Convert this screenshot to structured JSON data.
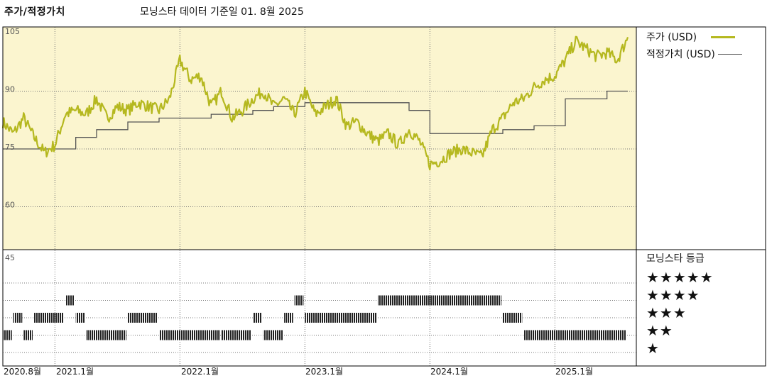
{
  "header": {
    "title": "주가/적정가치",
    "source": "모닝스타 데이터 기준일 01. 8월 2025"
  },
  "legend": {
    "price_label": "주가 (USD)",
    "fair_value_label": "적정가치 (USD)"
  },
  "rating_panel": {
    "title": "모닝스타 등급",
    "stars": [
      "★★★★★",
      "★★★★",
      "★★★",
      "★★",
      "★"
    ]
  },
  "colors": {
    "price": "#b5b81f",
    "fair_value": "#555555",
    "plot_bg": "#fbf5cf",
    "rating_bar": "#222222"
  },
  "chart_data": {
    "type": "line",
    "title": "주가/적정가치",
    "x_labels": [
      "2020.8월",
      "2021.1월",
      "2022.1월",
      "2023.1월",
      "2024.1월",
      "2025.1월"
    ],
    "x_label_dates": [
      "2020-08",
      "2021-01",
      "2022-01",
      "2023-01",
      "2024-01",
      "2025-01"
    ],
    "x_range": [
      "2020-08",
      "2025-08"
    ],
    "y_ticks": [
      105,
      90,
      75,
      60,
      45
    ],
    "ylim": [
      45,
      105
    ],
    "grid": true,
    "series": [
      {
        "name": "주가 (USD)",
        "x": [
          "2020-08",
          "2020-09",
          "2020-10",
          "2020-11",
          "2020-12",
          "2021-01",
          "2021-02",
          "2021-03",
          "2021-04",
          "2021-05",
          "2021-06",
          "2021-07",
          "2021-08",
          "2021-09",
          "2021-10",
          "2021-11",
          "2021-12",
          "2022-01",
          "2022-02",
          "2022-03",
          "2022-04",
          "2022-05",
          "2022-06",
          "2022-07",
          "2022-08",
          "2022-09",
          "2022-10",
          "2022-11",
          "2022-12",
          "2023-01",
          "2023-02",
          "2023-03",
          "2023-04",
          "2023-05",
          "2023-06",
          "2023-07",
          "2023-08",
          "2023-09",
          "2023-10",
          "2023-11",
          "2023-12",
          "2024-01",
          "2024-02",
          "2024-03",
          "2024-04",
          "2024-05",
          "2024-06",
          "2024-07",
          "2024-08",
          "2024-09",
          "2024-10",
          "2024-11",
          "2024-12",
          "2025-01",
          "2025-02",
          "2025-03",
          "2025-04",
          "2025-05",
          "2025-06",
          "2025-07",
          "2025-08"
        ],
        "values": [
          82,
          79,
          83,
          78,
          74,
          76,
          84,
          85,
          84,
          88,
          83,
          86,
          85,
          87,
          86,
          85,
          88,
          98,
          93,
          94,
          86,
          90,
          83,
          85,
          88,
          90,
          86,
          88,
          84,
          90,
          84,
          86,
          88,
          81,
          82,
          79,
          77,
          79,
          76,
          80,
          77,
          71,
          72,
          74,
          75,
          74,
          73,
          80,
          83,
          87,
          88,
          91,
          93,
          94,
          98,
          103,
          101,
          99,
          100,
          98,
          104
        ],
        "color": "#b5b81f"
      },
      {
        "name": "적정가치 (USD)",
        "x": [
          "2020-08",
          "2021-03",
          "2021-05",
          "2021-08",
          "2021-11",
          "2022-01",
          "2022-04",
          "2022-06",
          "2022-08",
          "2022-10",
          "2023-01",
          "2023-03",
          "2023-06",
          "2023-11",
          "2024-01",
          "2024-08",
          "2024-11",
          "2025-02",
          "2025-04",
          "2025-06",
          "2025-08"
        ],
        "values": [
          75,
          78,
          80,
          82,
          83,
          83,
          84,
          84,
          85,
          86,
          87,
          87,
          87,
          85,
          79,
          80,
          81,
          88,
          88,
          90,
          90
        ],
        "color": "#555555"
      }
    ],
    "ratings": {
      "scale": [
        5,
        4,
        3,
        2,
        1
      ],
      "periods": [
        {
          "start": "2020-08",
          "end": "2020-09",
          "stars": 2
        },
        {
          "start": "2020-09",
          "end": "2020-10",
          "stars": 3
        },
        {
          "start": "2020-10",
          "end": "2020-11",
          "stars": 2
        },
        {
          "start": "2020-11",
          "end": "2021-02",
          "stars": 3
        },
        {
          "start": "2021-02",
          "end": "2021-03",
          "stars": 4
        },
        {
          "start": "2021-03",
          "end": "2021-04",
          "stars": 3
        },
        {
          "start": "2021-04",
          "end": "2021-08",
          "stars": 2
        },
        {
          "start": "2021-08",
          "end": "2021-11",
          "stars": 3
        },
        {
          "start": "2021-11",
          "end": "2022-05",
          "stars": 2
        },
        {
          "start": "2022-05",
          "end": "2022-08",
          "stars": 2
        },
        {
          "start": "2022-08",
          "end": "2022-09",
          "stars": 3
        },
        {
          "start": "2022-09",
          "end": "2022-11",
          "stars": 2
        },
        {
          "start": "2022-11",
          "end": "2022-12",
          "stars": 3
        },
        {
          "start": "2022-12",
          "end": "2023-01",
          "stars": 4
        },
        {
          "start": "2023-01",
          "end": "2023-08",
          "stars": 3
        },
        {
          "start": "2023-08",
          "end": "2024-08",
          "stars": 4
        },
        {
          "start": "2024-08",
          "end": "2024-10",
          "stars": 3
        },
        {
          "start": "2024-10",
          "end": "2025-08",
          "stars": 2
        }
      ]
    }
  }
}
